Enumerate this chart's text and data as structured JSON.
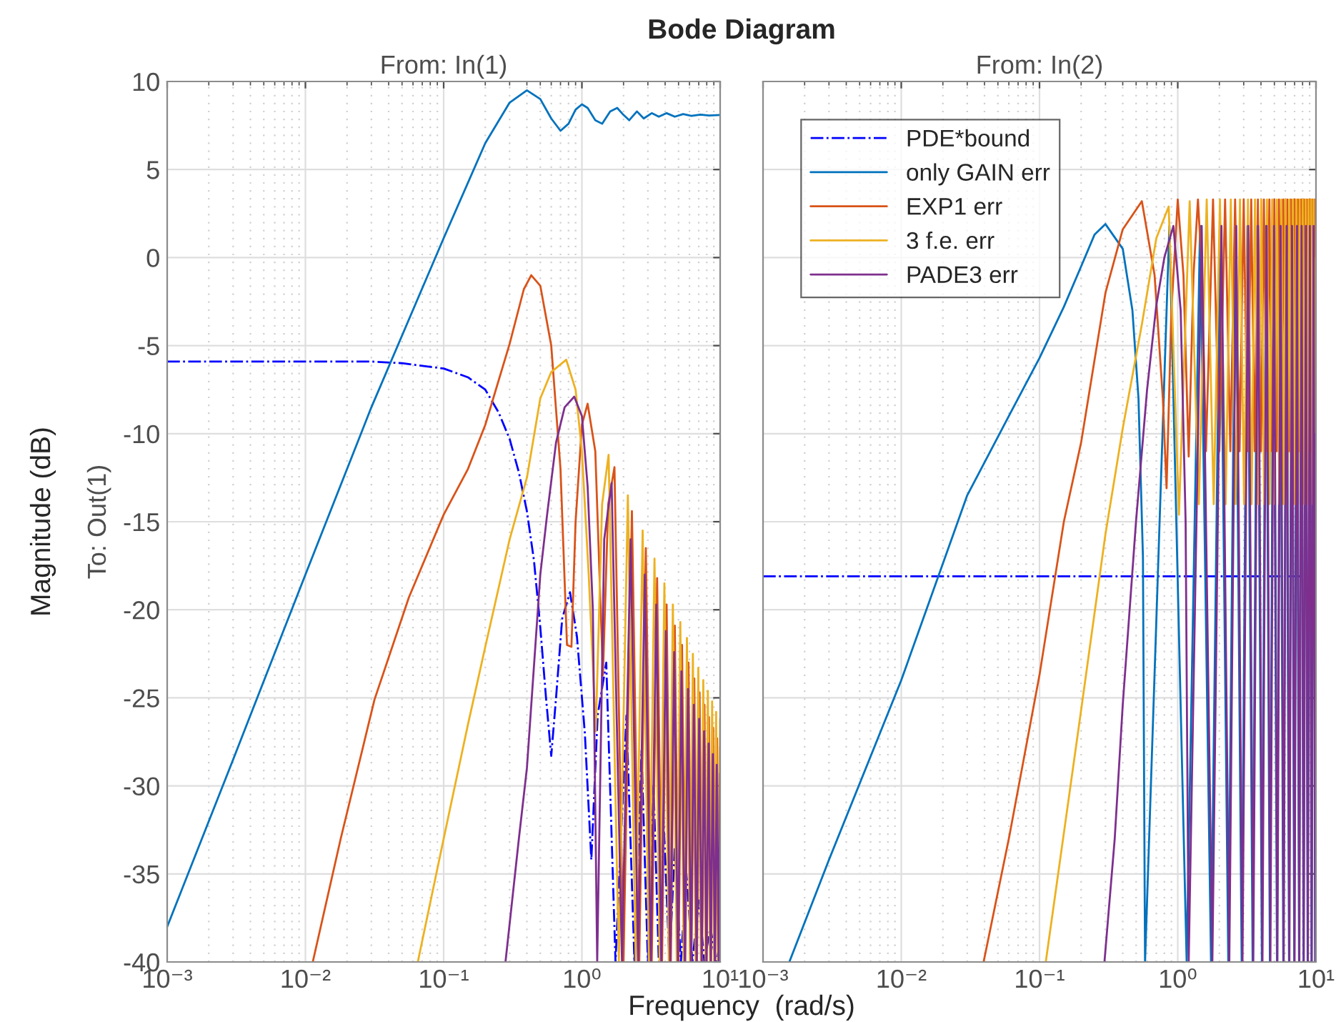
{
  "chart_data": [
    {
      "type": "line",
      "title": "From: In(1)",
      "ylabel": "To: Out(1)",
      "annotations": [
        "Bode Diagram",
        "Magnitude (dB)",
        "Frequency  (rad/s)"
      ],
      "log": "x",
      "xlim": [
        0.001,
        10
      ],
      "xticks": [
        {
          "value": 0.001,
          "label": "10⁻³"
        },
        {
          "value": 0.01,
          "label": "10⁻²"
        },
        {
          "value": 0.1,
          "label": "10⁻¹"
        },
        {
          "value": 1,
          "label": "10⁰"
        },
        {
          "value": 10,
          "label": "10¹"
        }
      ],
      "ylim": [
        -40,
        10
      ],
      "yticks": [
        10,
        5,
        0,
        -5,
        -10,
        -15,
        -20,
        -25,
        -30,
        -35,
        -40
      ],
      "grid": true,
      "series": [
        {
          "color": "#0000ff",
          "line_style": "dashdot",
          "x": [
            0.001,
            0.01,
            0.03,
            0.05,
            0.1,
            0.15,
            0.2,
            0.25,
            0.3,
            0.35,
            0.4,
            0.45,
            0.5,
            0.55,
            0.6,
            0.65,
            0.72,
            0.82,
            0.92,
            1.05,
            1.17,
            1.3,
            1.5,
            1.75,
            2.1,
            2.4,
            2.7,
            3.0,
            3.3,
            3.6,
            3.9,
            4.3,
            4.7,
            5.2,
            5.7,
            6.3,
            7.0,
            7.7,
            8.5,
            9.3,
            10
          ],
          "values": [
            -5.9,
            -5.9,
            -5.9,
            -6.0,
            -6.3,
            -6.8,
            -7.5,
            -8.8,
            -10.3,
            -12.2,
            -14.4,
            -17.2,
            -21,
            -25,
            -28.3,
            -25,
            -20.5,
            -19,
            -21.5,
            -27,
            -34.2,
            -26,
            -23,
            -40,
            -26,
            -40,
            -28,
            -40,
            -30,
            -40,
            -32,
            -40,
            -33.5,
            -40,
            -35,
            -40,
            -36.5,
            -40,
            -38,
            -40,
            -39
          ]
        },
        {
          "color": "#0072bd",
          "line_style": "solid",
          "x": [
            0.001,
            0.003,
            0.01,
            0.03,
            0.1,
            0.2,
            0.3,
            0.4,
            0.5,
            0.6,
            0.7,
            0.8,
            0.9,
            1.0,
            1.1,
            1.25,
            1.4,
            1.6,
            1.8,
            2.0,
            2.2,
            2.5,
            2.8,
            3.2,
            3.6,
            4.1,
            4.7,
            5.4,
            6.2,
            7.2,
            8.3,
            10
          ],
          "values": [
            -38,
            -28.5,
            -18,
            -8.5,
            1.1,
            6.5,
            8.8,
            9.5,
            9.0,
            7.9,
            7.2,
            7.6,
            8.4,
            8.7,
            8.5,
            7.8,
            7.6,
            8.3,
            8.5,
            8.1,
            7.8,
            8.3,
            7.9,
            8.2,
            8.0,
            8.2,
            8.0,
            8.15,
            8.05,
            8.12,
            8.07,
            8.1
          ]
        },
        {
          "color": "#d95319",
          "line_style": "solid",
          "x": [
            0.0113,
            0.018,
            0.0316,
            0.056,
            0.1,
            0.15,
            0.2,
            0.3,
            0.38,
            0.43,
            0.5,
            0.6,
            0.7,
            0.78,
            0.84,
            0.9,
            1.0,
            1.1,
            1.25,
            1.42,
            1.55,
            1.72,
            2.0,
            2.3,
            2.6,
            2.9,
            3.2,
            3.5,
            3.8,
            4.1,
            4.4,
            4.7,
            5.0,
            5.3,
            5.6,
            5.9,
            6.2,
            6.5,
            6.8,
            7.1,
            7.4,
            7.7,
            8.0,
            8.3,
            8.6,
            8.9,
            9.2,
            9.5,
            9.8,
            10
          ],
          "values": [
            -40,
            -33,
            -25.1,
            -19.3,
            -14.6,
            -12,
            -9.5,
            -4.9,
            -1.8,
            -1,
            -1.6,
            -5,
            -12,
            -22,
            -22.1,
            -15,
            -9.5,
            -8.3,
            -11,
            -23.7,
            -14,
            -11.9,
            -40,
            -14.4,
            -40,
            -16.5,
            -40,
            -18.2,
            -40,
            -19.7,
            -40,
            -20.9,
            -40,
            -22.0,
            -40,
            -23.0,
            -40,
            -23.9,
            -40,
            -24.7,
            -40,
            -25.4,
            -40,
            -26.1,
            -40,
            -26.7,
            -40,
            -27.3,
            -40,
            -27.8
          ]
        },
        {
          "color": "#edb120",
          "line_style": "solid",
          "x": [
            0.065,
            0.1,
            0.15,
            0.2,
            0.3,
            0.4,
            0.5,
            0.6,
            0.77,
            0.9,
            1.0,
            1.12,
            1.26,
            1.4,
            1.56,
            1.85,
            2.15,
            2.45,
            2.75,
            3.05,
            3.35,
            3.65,
            3.95,
            4.25,
            4.55,
            4.85,
            5.15,
            5.45,
            5.75,
            6.05,
            6.35,
            6.65,
            6.95,
            7.25,
            7.55,
            7.85,
            8.15,
            8.45,
            8.75,
            9.05,
            9.35,
            9.65,
            10
          ],
          "values": [
            -40,
            -33,
            -26.5,
            -22.1,
            -16,
            -12.5,
            -8,
            -6.5,
            -5.8,
            -7.5,
            -11,
            -18,
            -26.9,
            -14,
            -11.2,
            -40,
            -13.5,
            -40,
            -15.5,
            -40,
            -17.1,
            -40,
            -18.5,
            -40,
            -19.7,
            -40,
            -20.7,
            -40,
            -21.6,
            -40,
            -22.5,
            -40,
            -23.3,
            -40,
            -24.0,
            -40,
            -24.6,
            -40,
            -25.2,
            -40,
            -25.8,
            -40,
            -26.2
          ]
        },
        {
          "color": "#7e2f8e",
          "line_style": "solid",
          "x": [
            0.28,
            0.35,
            0.4,
            0.5,
            0.56,
            0.65,
            0.75,
            0.88,
            1.0,
            1.1,
            1.2,
            1.29,
            1.45,
            1.64,
            1.95,
            2.25,
            2.55,
            2.85,
            3.15,
            3.45,
            3.75,
            4.05,
            4.35,
            4.65,
            4.95,
            5.25,
            5.55,
            5.85,
            6.15,
            6.45,
            6.75,
            7.05,
            7.35,
            7.65,
            7.95,
            8.25,
            8.55,
            8.85,
            9.15,
            9.45,
            9.75,
            10
          ],
          "values": [
            -40,
            -33,
            -29,
            -18,
            -14.6,
            -10.5,
            -8.5,
            -7.9,
            -9,
            -13,
            -20,
            -40,
            -16,
            -12.8,
            -40,
            -16,
            -40,
            -18,
            -40,
            -19.7,
            -40,
            -21.2,
            -40,
            -22.4,
            -40,
            -23.5,
            -40,
            -24.5,
            -40,
            -25.4,
            -40,
            -26.2,
            -40,
            -26.9,
            -40,
            -27.6,
            -40,
            -28.2,
            -40,
            -28.8,
            -40,
            -29.3
          ]
        }
      ]
    },
    {
      "type": "line",
      "title": "From: In(2)",
      "log": "x",
      "xlim": [
        0.001,
        10
      ],
      "xticks": [
        {
          "value": 0.001,
          "label": "10⁻³"
        },
        {
          "value": 0.01,
          "label": "10⁻²"
        },
        {
          "value": 0.1,
          "label": "10⁻¹"
        },
        {
          "value": 1,
          "label": "10⁰"
        },
        {
          "value": 10,
          "label": "10¹"
        }
      ],
      "ylim": [
        -40,
        10
      ],
      "yticks": [
        10,
        5,
        0,
        -5,
        -10,
        -15,
        -20,
        -25,
        -30,
        -35,
        -40
      ],
      "grid": true,
      "tick_labels": "x",
      "legend": "top left",
      "series": [
        {
          "name": "PDE*bound",
          "color": "#0000ff",
          "line_style": "dashdot",
          "x": [
            0.001,
            0.01,
            0.1,
            1,
            10
          ],
          "values": [
            -18.1,
            -18.1,
            -18.1,
            -18.1,
            -18.1
          ]
        },
        {
          "name": "only GAIN err",
          "color": "#0072bd",
          "line_style": "solid",
          "x": [
            0.00155,
            0.003,
            0.01,
            0.03,
            0.06,
            0.1,
            0.15,
            0.2,
            0.25,
            0.3,
            0.4,
            0.47,
            0.52,
            0.56,
            0.58,
            0.87,
            1.16,
            1.45,
            1.74,
            2.03,
            2.32,
            2.61,
            2.9,
            3.19,
            3.48,
            3.77,
            4.06,
            4.35,
            4.64,
            4.93,
            5.22,
            5.51,
            5.8,
            6.09,
            6.38,
            6.67,
            6.96,
            7.25,
            7.54,
            7.83,
            8.12,
            8.41,
            8.7,
            8.99,
            9.28,
            9.57,
            9.86,
            10
          ],
          "values": [
            -40,
            -34.2,
            -24,
            -13.5,
            -9,
            -5.7,
            -2.8,
            -0.5,
            1.3,
            1.9,
            0.5,
            -3,
            -8,
            -17,
            -40,
            1.8,
            -40,
            1.8,
            -40,
            1.8,
            -40,
            1.8,
            -40,
            1.8,
            -40,
            1.8,
            -40,
            1.8,
            -40,
            1.8,
            -40,
            1.8,
            -40,
            1.8,
            -40,
            1.8,
            -40,
            1.8,
            -40,
            1.8,
            -40,
            1.8,
            -40,
            1.8,
            -40,
            1.8,
            -40,
            -3
          ]
        },
        {
          "name": "EXP1 err",
          "color": "#d95319",
          "line_style": "solid",
          "x": [
            0.0394,
            0.06,
            0.1,
            0.15,
            0.2,
            0.3,
            0.4,
            0.55,
            0.68,
            0.78,
            0.83,
            0.9,
            1.0,
            1.1,
            1.2,
            1.3,
            1.4,
            1.5,
            1.6,
            1.8,
            2.0,
            2.2,
            2.4,
            2.6,
            2.8,
            3.0,
            3.2,
            3.4,
            3.6,
            3.8,
            4.0,
            4.2,
            4.4,
            4.6,
            4.8,
            5.0,
            5.2,
            5.4,
            5.6,
            5.8,
            6.0,
            6.2,
            6.4,
            6.6,
            6.8,
            7.0,
            7.2,
            7.4,
            7.6,
            7.8,
            8.0,
            8.2,
            8.4,
            8.6,
            8.8,
            9.0,
            9.2,
            9.4,
            9.6,
            9.8,
            10
          ],
          "values": [
            -40,
            -33,
            -23.7,
            -15,
            -10.5,
            -2,
            1.6,
            3.2,
            -1,
            -8,
            -13.1,
            -3,
            3.3,
            -1,
            -11.3,
            -1,
            3.3,
            -1,
            -11,
            3.3,
            -11,
            3.3,
            -11,
            3.3,
            -11,
            3.3,
            -11,
            3.3,
            -11,
            3.3,
            -11,
            3.3,
            -11,
            3.3,
            -11,
            3.3,
            -11,
            3.3,
            -11,
            3.3,
            -11,
            3.3,
            -11,
            3.3,
            -11,
            3.3,
            -11,
            3.3,
            -11,
            3.3,
            -11,
            3.3,
            -11,
            3.3,
            -11,
            3.3,
            -11,
            3.3,
            -11,
            3.3,
            -11
          ]
        },
        {
          "name": "3 f.e. err",
          "color": "#edb120",
          "line_style": "solid",
          "x": [
            0.111,
            0.2,
            0.3,
            0.4,
            0.55,
            0.7,
            0.86,
            1.02,
            1.22,
            1.42,
            1.62,
            1.82,
            2.02,
            2.22,
            2.42,
            2.62,
            2.82,
            3.02,
            3.22,
            3.42,
            3.62,
            3.82,
            4.02,
            4.22,
            4.42,
            4.62,
            4.82,
            5.02,
            5.22,
            5.42,
            5.62,
            5.82,
            6.02,
            6.22,
            6.42,
            6.62,
            6.82,
            7.02,
            7.22,
            7.42,
            7.62,
            7.82,
            8.02,
            8.22,
            8.42,
            8.62,
            8.82,
            9.02,
            9.22,
            9.42,
            9.62,
            9.82,
            10
          ],
          "values": [
            -40,
            -25.7,
            -15.7,
            -9.7,
            -3.8,
            1.1,
            2.9,
            -14.6,
            3.2,
            -14,
            3.3,
            -14,
            3.3,
            -14,
            3.3,
            -14,
            3.3,
            -14,
            3.3,
            -14,
            3.3,
            -14,
            3.3,
            -14,
            3.3,
            -14,
            3.3,
            -14,
            3.3,
            -14,
            3.3,
            -14,
            3.3,
            -14,
            3.3,
            -14,
            3.3,
            -14,
            3.3,
            -14,
            3.3,
            -14,
            3.3,
            -14,
            3.3,
            -14,
            3.3,
            -14,
            3.3,
            -14,
            3.3,
            -14,
            0
          ]
        },
        {
          "name": "PADE3 err",
          "color": "#7e2f8e",
          "line_style": "solid",
          "x": [
            0.295,
            0.35,
            0.4,
            0.5,
            0.6,
            0.7,
            0.8,
            0.93,
            1.05,
            1.14,
            1.2,
            1.49,
            1.78,
            2.07,
            2.36,
            2.65,
            2.94,
            3.23,
            3.52,
            3.81,
            4.1,
            4.39,
            4.68,
            4.97,
            5.26,
            5.55,
            5.84,
            6.13,
            6.42,
            6.71,
            7.0,
            7.29,
            7.58,
            7.87,
            8.16,
            8.45,
            8.74,
            9.03,
            9.32,
            9.61,
            9.9,
            10
          ],
          "values": [
            -40,
            -33,
            -25.4,
            -14.9,
            -7.5,
            -2.7,
            0,
            1.8,
            -3,
            -15,
            -40,
            1.8,
            -40,
            1.8,
            -40,
            1.8,
            -40,
            1.8,
            -40,
            1.8,
            -40,
            1.8,
            -40,
            1.8,
            -40,
            1.8,
            -40,
            1.8,
            -40,
            1.8,
            -40,
            1.8,
            -40,
            1.8,
            -40,
            1.8,
            -40,
            1.8,
            -40,
            1.8,
            -40,
            -10
          ]
        }
      ]
    }
  ]
}
